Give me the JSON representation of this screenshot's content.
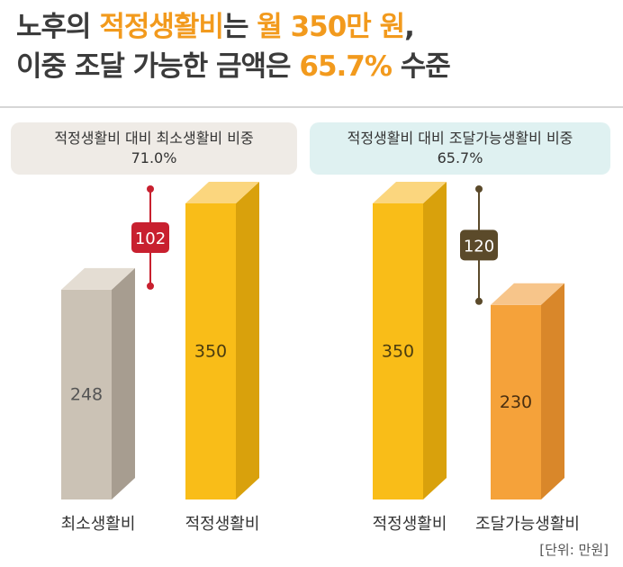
{
  "headline": {
    "line1_a": "노후의 ",
    "line1_b": "적정생활비",
    "line1_c": "는 ",
    "line1_d": "월 350만 원",
    "line1_e": ",",
    "line2_a": "이중 조달 가능한 금액은 ",
    "line2_b": "65.7%",
    "line2_c": " 수준"
  },
  "left_pill": {
    "title": "적정생활비 대비 최소생활비 비중",
    "value": "71.0%"
  },
  "right_pill": {
    "title": "적정생활비 대비 조달가능생활비 비중",
    "value": "65.7%"
  },
  "unit_label": "[단위: 만원]",
  "colors": {
    "accent": "#f29a1d",
    "min_bar": "#cbc2b5",
    "proper_bar": "#f9bd18",
    "available_bar": "#f5a23a",
    "diff_left": "#c8202f",
    "diff_right": "#5b4a2a"
  },
  "chart_data": {
    "type": "bar",
    "groups": [
      {
        "bars": [
          {
            "category": "최소생활비",
            "value": 248,
            "label": "248",
            "color": "gray"
          },
          {
            "category": "적정생활비",
            "value": 350,
            "label": "350",
            "color": "yellow"
          }
        ],
        "difference": {
          "value": 102,
          "label": "102",
          "color": "red"
        }
      },
      {
        "bars": [
          {
            "category": "적정생활비",
            "value": 350,
            "label": "350",
            "color": "yellow"
          },
          {
            "category": "조달가능생활비",
            "value": 230,
            "label": "230",
            "color": "orange"
          }
        ],
        "difference": {
          "value": 120,
          "label": "120",
          "color": "brown"
        }
      }
    ],
    "unit": "[단위: 만원]"
  }
}
